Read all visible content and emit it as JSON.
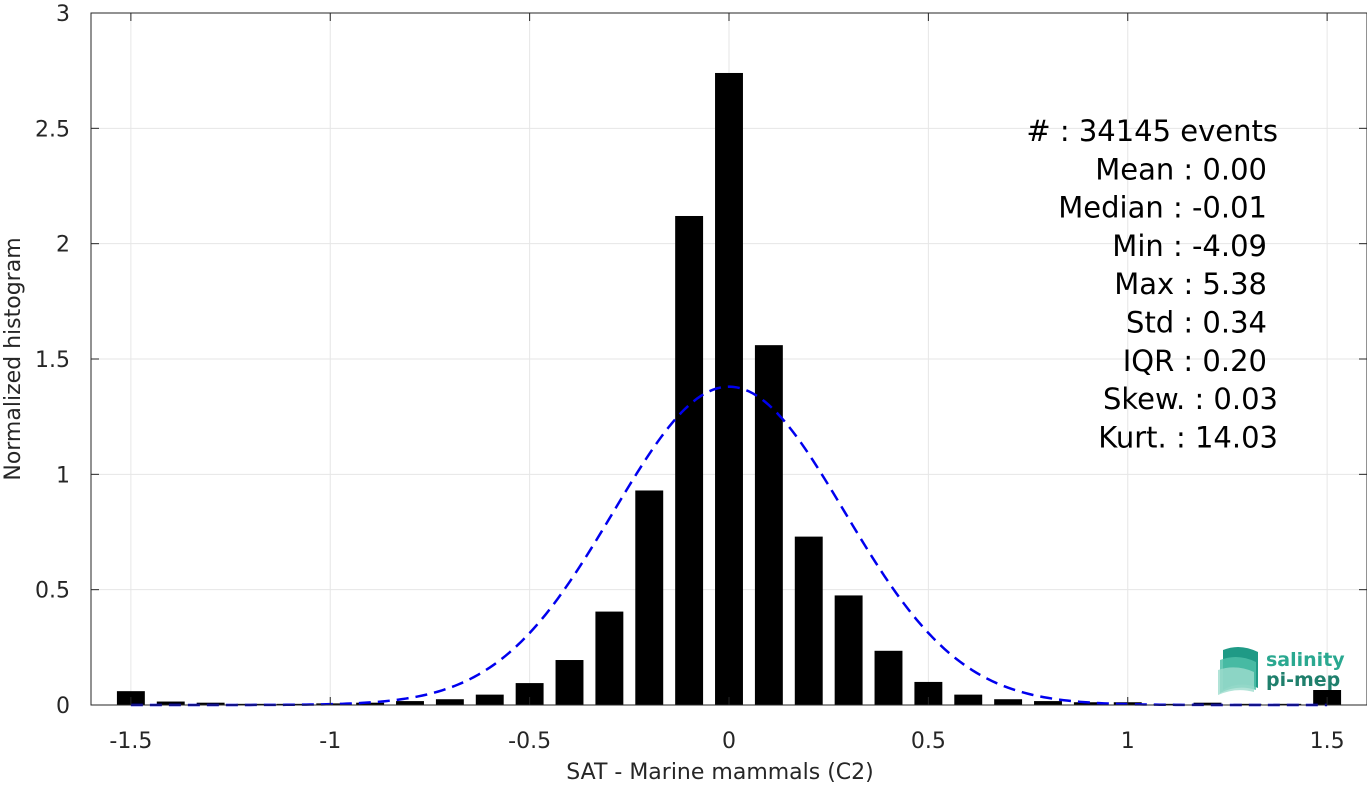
{
  "chart_data": {
    "type": "bar",
    "xlabel": "SAT - Marine mammals (C2)",
    "ylabel": "Normalized histogram",
    "xlim": [
      -1.6,
      1.6
    ],
    "ylim": [
      0,
      3
    ],
    "xticks": [
      -1.5,
      -1,
      -0.5,
      0,
      0.5,
      1,
      1.5
    ],
    "xtick_labels": [
      "-1.5",
      "-1",
      "-0.5",
      "0",
      "0.5",
      "1",
      "1.5"
    ],
    "yticks": [
      0,
      0.5,
      1,
      1.5,
      2,
      2.5,
      3
    ],
    "ytick_labels": [
      "0",
      "0.5",
      "1",
      "1.5",
      "2",
      "2.5",
      "3"
    ],
    "grid": true,
    "bar_color": "#000000",
    "bars": {
      "centers": [
        -1.5,
        -1.4,
        -1.3,
        -1.2,
        -1.1,
        -1.0,
        -0.9,
        -0.8,
        -0.7,
        -0.6,
        -0.5,
        -0.4,
        -0.3,
        -0.2,
        -0.1,
        0.0,
        0.1,
        0.2,
        0.3,
        0.4,
        0.5,
        0.6,
        0.7,
        0.8,
        0.9,
        1.0,
        1.1,
        1.2,
        1.3,
        1.4,
        1.5
      ],
      "values": [
        0.06,
        0.015,
        0.01,
        0.005,
        0.005,
        0.007,
        0.01,
        0.017,
        0.025,
        0.045,
        0.095,
        0.195,
        0.405,
        0.93,
        2.12,
        2.74,
        1.56,
        0.73,
        0.475,
        0.235,
        0.1,
        0.045,
        0.025,
        0.017,
        0.012,
        0.012,
        0.005,
        0.01,
        0.005,
        0.005,
        0.065
      ],
      "width": 0.07
    },
    "fit_curve": {
      "style": "dashed",
      "color": "#0000ee",
      "mean": 0.0,
      "std": 0.29,
      "peak": 1.38
    },
    "annotation_lines": [
      "#  : 34145 events",
      "Mean : 0.00",
      "Median : -0.01",
      "Min : -4.09",
      "Max : 5.38",
      "Std : 0.34",
      "IQR : 0.20",
      "Skew. : 0.03",
      "Kurt. : 14.03"
    ]
  },
  "logo": {
    "line1": "salinity",
    "line2": "pi-mep",
    "color": "#2aa890"
  }
}
